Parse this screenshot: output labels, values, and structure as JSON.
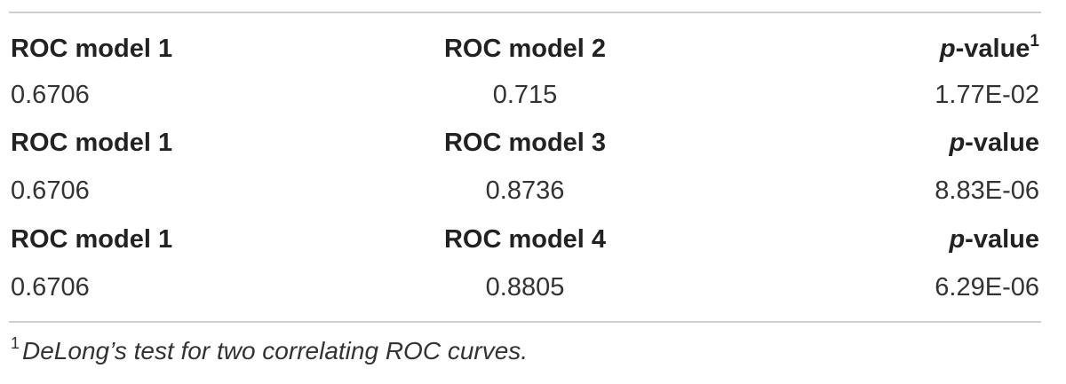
{
  "table": {
    "rows": [
      {
        "kind": "header",
        "col1": "ROC model 1",
        "col2": "ROC model 2",
        "p_italic": "p",
        "p_rest": "-value",
        "p_sup": "1"
      },
      {
        "kind": "values",
        "col1": "0.6706",
        "col2": "0.715",
        "col3": "1.77E-02"
      },
      {
        "kind": "header",
        "col1": "ROC model 1",
        "col2": "ROC model 3",
        "p_italic": "p",
        "p_rest": "-value"
      },
      {
        "kind": "values",
        "col1": "0.6706",
        "col2": "0.8736",
        "col3": "8.83E-06"
      },
      {
        "kind": "header",
        "col1": "ROC model 1",
        "col2": "ROC model 4",
        "p_italic": "p",
        "p_rest": "-value"
      },
      {
        "kind": "values",
        "col1": "0.6706",
        "col2": "0.8805",
        "col3": "6.29E-06"
      }
    ]
  },
  "footnote": {
    "marker": "1",
    "text": "DeLong’s test for two correlating ROC curves."
  }
}
